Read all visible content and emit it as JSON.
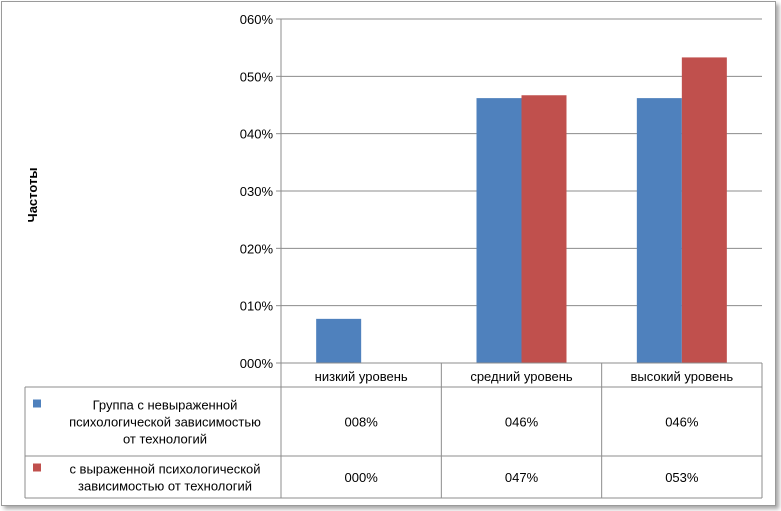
{
  "chart_data": {
    "type": "bar",
    "ylabel": "Частоты",
    "ylim": [
      0,
      60
    ],
    "yticks": [
      "000%",
      "010%",
      "020%",
      "030%",
      "040%",
      "050%",
      "060%"
    ],
    "categories": [
      "низкий уровень",
      "средний уровень",
      "высокий уровень"
    ],
    "series": [
      {
        "name": "Группа с невыраженной психологической зависимостью от технологий",
        "name_lines": [
          "Группа с невыраженной",
          "психологической зависимостью",
          "от технологий"
        ],
        "color": "#4f81bd",
        "values": [
          7.7,
          46.2,
          46.2
        ],
        "labels": [
          "008%",
          "046%",
          "046%"
        ]
      },
      {
        "name": "с выраженной психологической зависимостью от технологий",
        "name_lines": [
          "с выраженной психологической",
          "зависимостью от технологий"
        ],
        "color": "#c0504d",
        "values": [
          0,
          46.7,
          53.3
        ],
        "labels": [
          "000%",
          "047%",
          "053%"
        ]
      }
    ],
    "grid": true,
    "legend": "data-table"
  }
}
